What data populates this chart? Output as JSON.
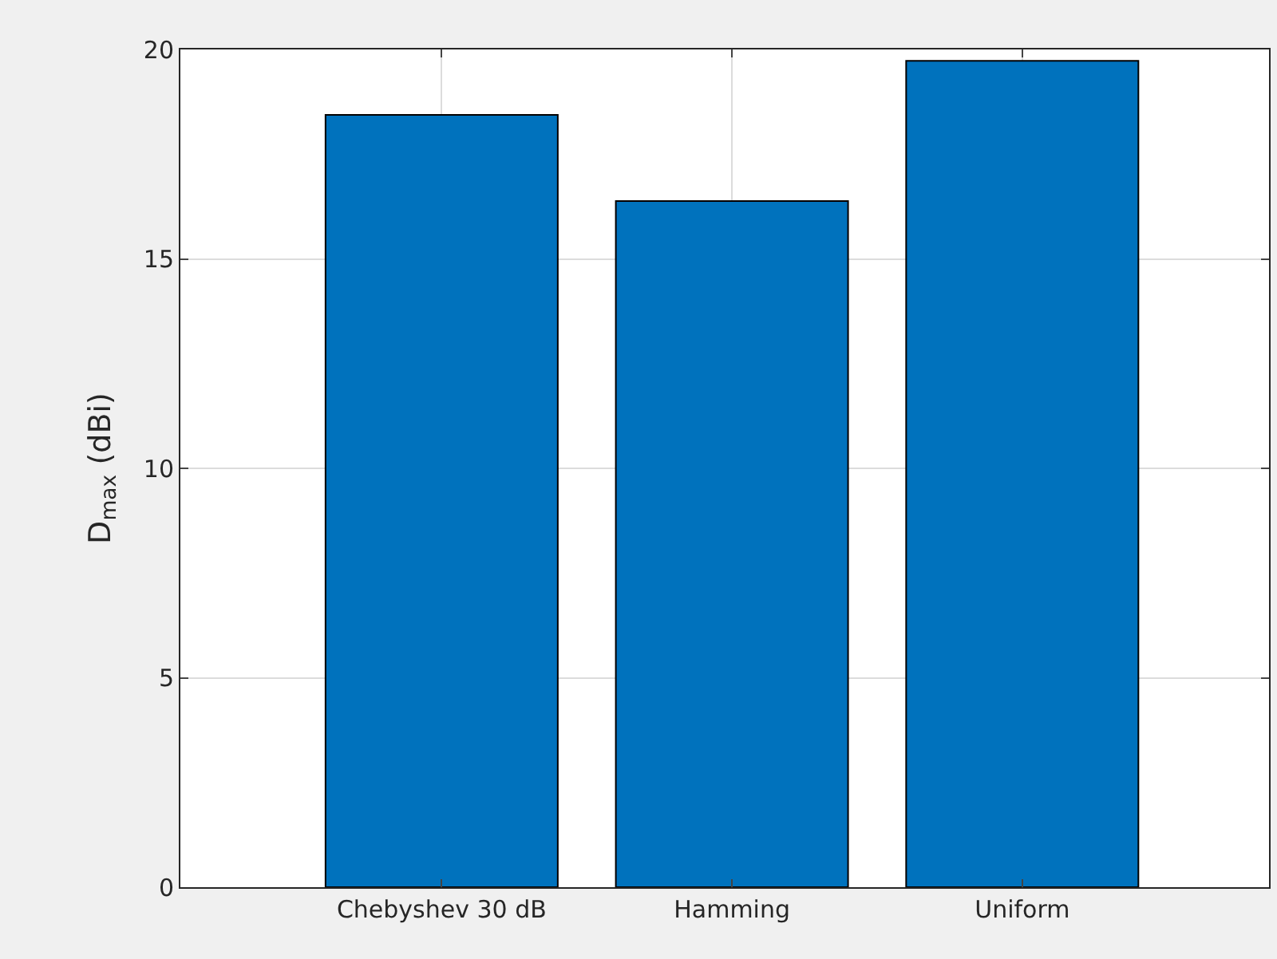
{
  "chart_data": {
    "type": "bar",
    "ylabel": "D$_{max}$ (dBi)",
    "categories": [
      "Chebyshev 30 dB",
      "Hamming",
      "Uniform"
    ],
    "values": [
      18.44,
      16.38,
      19.73
    ],
    "color": "#0072bd",
    "ylim": [
      0,
      20
    ],
    "yticks": [
      0,
      5,
      10,
      15,
      20
    ],
    "grid": true
  }
}
